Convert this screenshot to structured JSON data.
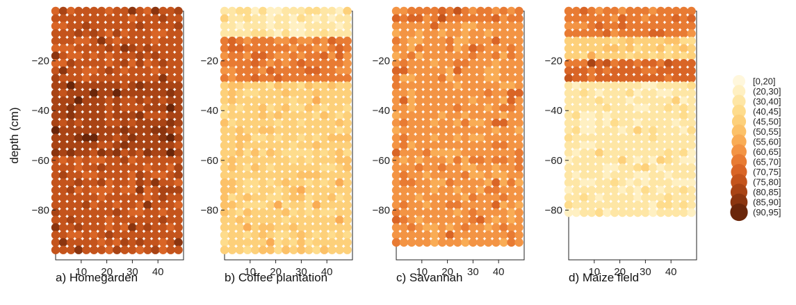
{
  "chart_data": {
    "type": "heatmap",
    "ylabel": "depth (cm)",
    "x_ticks": [
      10,
      20,
      30,
      40
    ],
    "y_ticks": [
      -20,
      -40,
      -60,
      -80
    ],
    "xlim": [
      0,
      50
    ],
    "ylim": [
      -100,
      0
    ],
    "grid_step_cm": 3,
    "legend_position": "right",
    "legend": {
      "bins": [
        "[0,20]",
        "(20,30]",
        "(30,40]",
        "(40,45]",
        "(45,50]",
        "(50,55]",
        "(55,60]",
        "(60,65]",
        "(65,70]",
        "(70,75]",
        "(75,80]",
        "(80,85]",
        "(85,90]",
        "(90,95]"
      ],
      "colors": [
        "#fff7dc",
        "#fff0c2",
        "#fee6a5",
        "#fedc8c",
        "#fdd07a",
        "#fcc168",
        "#f9ac55",
        "#f39444",
        "#e87b33",
        "#d96526",
        "#c4541c",
        "#a94415",
        "#8b350f",
        "#6a260a"
      ]
    },
    "panels": [
      {
        "title": "a) Homegarden",
        "x_max": 48,
        "y_bottom": -97,
        "zones": [
          {
            "y_range": [
              0,
              -30
            ],
            "bin": 10
          },
          {
            "y_range": [
              -30,
              -60
            ],
            "bin": 11
          },
          {
            "y_range": [
              -60,
              -100
            ],
            "bin": 10
          }
        ]
      },
      {
        "title": "b) Coffee plantation",
        "x_max": 48,
        "y_bottom": -97,
        "zones": [
          {
            "y_range": [
              0,
              -10
            ],
            "bin": 2
          },
          {
            "y_range": [
              -10,
              -30
            ],
            "bin": 8
          },
          {
            "y_range": [
              -30,
              -100
            ],
            "bin": 4
          }
        ]
      },
      {
        "title": "c) Savannah",
        "x_max": 48,
        "y_bottom": -93,
        "zones": [
          {
            "y_range": [
              0,
              -6
            ],
            "bin": 8
          },
          {
            "y_range": [
              -6,
              -100
            ],
            "bin": 7
          }
        ]
      },
      {
        "title": "d) Maize field",
        "x_max": 48,
        "y_bottom": -81,
        "zones": [
          {
            "y_range": [
              0,
              -10
            ],
            "bin": 8
          },
          {
            "y_range": [
              -10,
              -20
            ],
            "bin": 4
          },
          {
            "y_range": [
              -20,
              -30
            ],
            "bin": 9
          },
          {
            "y_range": [
              -30,
              -100
            ],
            "bin": 2
          }
        ]
      }
    ]
  }
}
